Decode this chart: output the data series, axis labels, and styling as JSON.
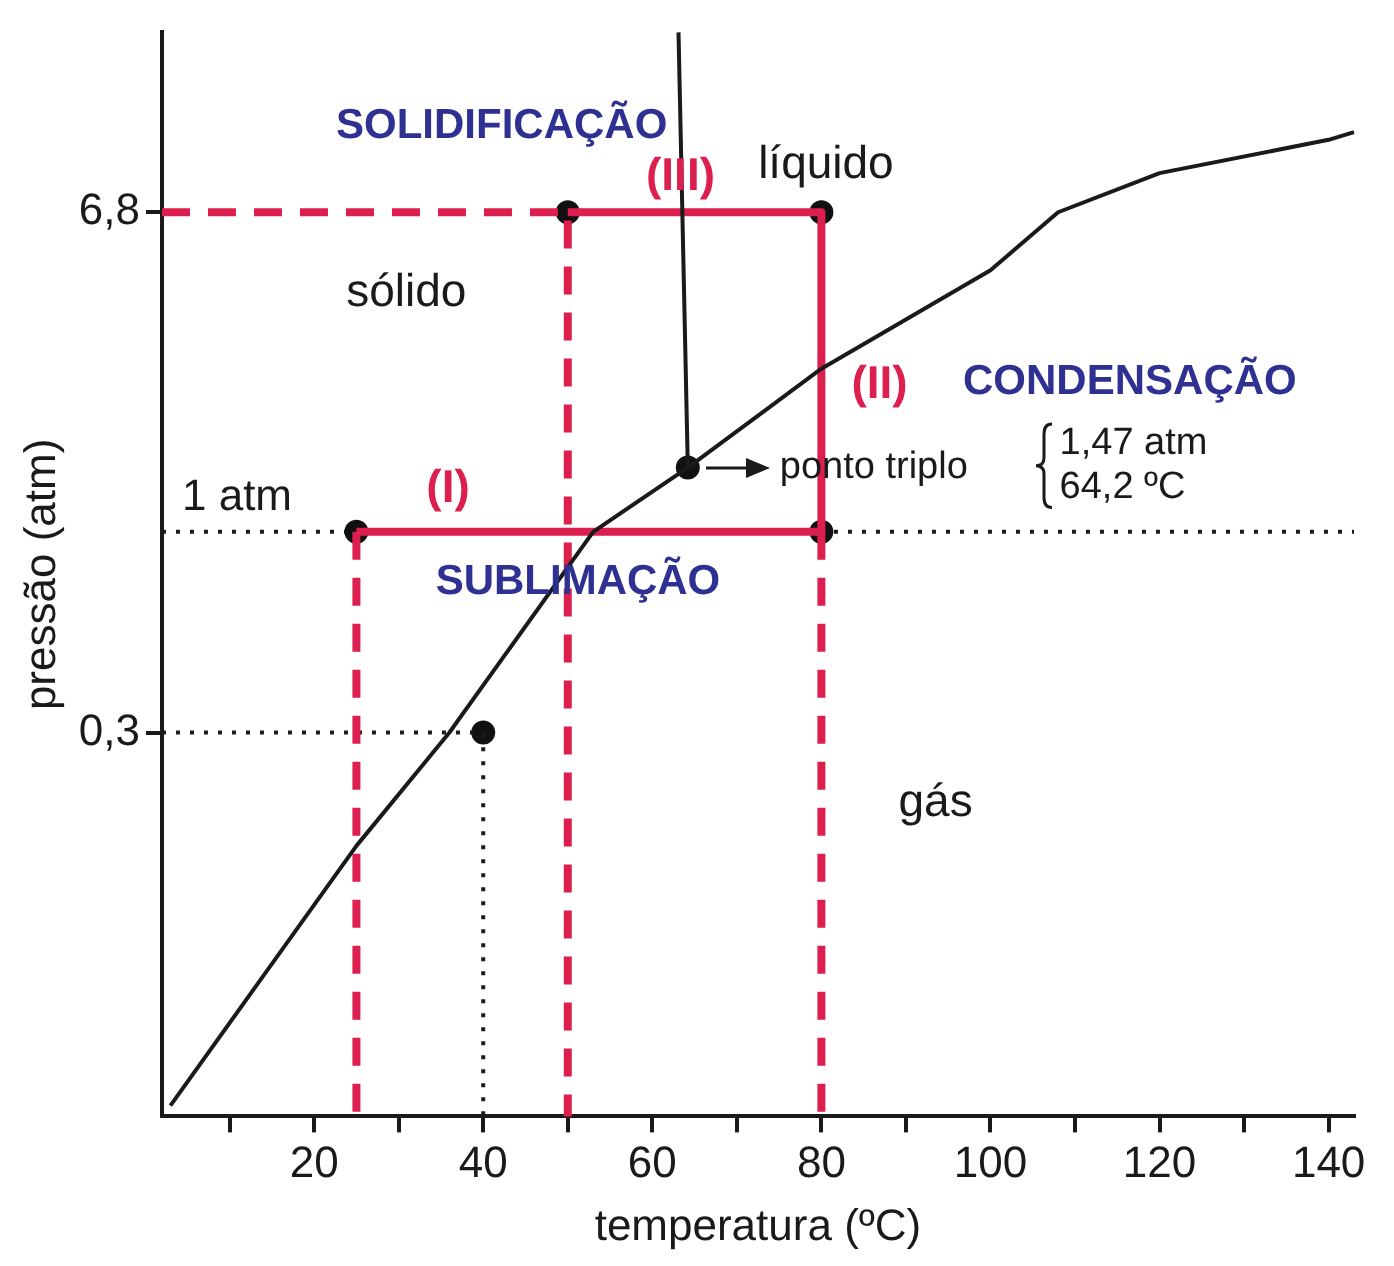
{
  "chart_data": {
    "type": "line",
    "xlabel": "temperatura (ºC)",
    "ylabel": "pressão (atm)",
    "log": "y",
    "xlim": [
      2,
      143
    ],
    "xticks": [
      {
        "value": 10,
        "label": null
      },
      20,
      {
        "value": 30,
        "label": null
      },
      40,
      {
        "value": 50,
        "label": null
      },
      60,
      {
        "value": 70,
        "label": null
      },
      80,
      {
        "value": 90,
        "label": null
      },
      100,
      {
        "value": 110,
        "label": null
      },
      120,
      {
        "value": 130,
        "label": null
      },
      140
    ],
    "ylim": [
      0.03,
      20
    ],
    "yticks": [
      {
        "value": 0.3,
        "label": "0,3"
      },
      {
        "value": 6.8,
        "label": "6,8"
      }
    ],
    "grid": false,
    "legend": false,
    "series": [
      {
        "color": "#1a1a1a",
        "marker": "none",
        "line_style": "solid",
        "x": [
          3,
          25,
          36,
          53,
          64.2,
          80,
          100,
          108,
          120,
          140,
          143
        ],
        "values": [
          0.032,
          0.152,
          0.3,
          1,
          1.47,
          2.66,
          4.8,
          6.8,
          8.6,
          10.5,
          11
        ]
      },
      {
        "color": "#1a1a1a",
        "marker": "none",
        "line_style": "solid",
        "x": [
          63.1,
          64.2
        ],
        "values": [
          20,
          1.47
        ]
      },
      {
        "color": "#dc1f4e",
        "marker": "none",
        "line_style": "solid",
        "x": [
          50,
          80,
          80,
          25
        ],
        "values": [
          6.8,
          6.8,
          1,
          1
        ]
      },
      {
        "color": "#dc1f4e",
        "marker": "none",
        "line_style": "dashed",
        "x": [
          2,
          50,
          50
        ],
        "values": [
          6.8,
          6.8,
          0.03
        ]
      },
      {
        "color": "#dc1f4e",
        "marker": "none",
        "line_style": "dashed",
        "x": [
          25,
          25
        ],
        "values": [
          1,
          0.03
        ]
      },
      {
        "color": "#dc1f4e",
        "marker": "none",
        "line_style": "dashed",
        "x": [
          80,
          80
        ],
        "values": [
          1,
          0.03
        ]
      },
      {
        "color": "#1a1a1a",
        "marker": "none",
        "line_style": "dotted",
        "x": [
          2,
          40,
          40
        ],
        "values": [
          0.3,
          0.3,
          0.03
        ]
      },
      {
        "type": "scatter",
        "color": "#111111",
        "marker": "circle",
        "x": [
          25,
          50,
          80,
          80,
          40,
          64.2
        ],
        "values": [
          1,
          6.8,
          6.8,
          1,
          0.3,
          1.47
        ]
      }
    ],
    "ref_lines": [
      {
        "axis": "y",
        "value": 1,
        "label": "1 atm",
        "color": "#1a1a1a",
        "line_style": "dotted"
      }
    ],
    "annotations": [
      "SOLIDIFICAÇÃO",
      "(III)",
      "líquido",
      "sólido",
      "(II)",
      "CONDENSAÇÃO",
      {
        "text": "ponto triplo",
        "x": 64.2,
        "y": 1.47
      },
      "1,47 atm\n64,2 ºC",
      "(I)",
      "SUBLIMAÇÃO",
      "gás"
    ]
  }
}
